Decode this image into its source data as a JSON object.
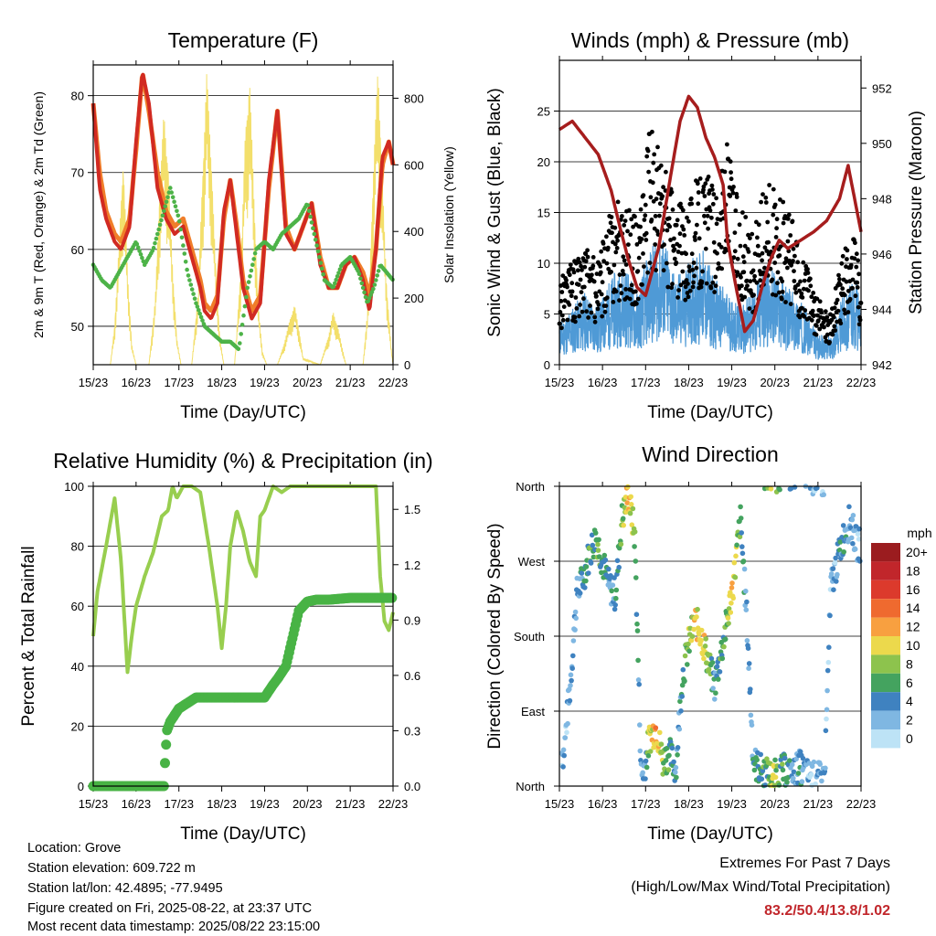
{
  "colors": {
    "temp_9m": "#d12a22",
    "temp_2m": "#f07e2a",
    "dewpoint": "#4db348",
    "solar": "#f3df6b",
    "wind": "#4f9ad6",
    "gust": "#000000",
    "pressure": "#a61d1d",
    "rh": "#98ce4f",
    "precip": "#48b345",
    "extremes_value": "#c1262b"
  },
  "time_ticks": [
    "15/23",
    "16/23",
    "17/23",
    "18/23",
    "19/23",
    "20/23",
    "21/23",
    "22/23"
  ],
  "xlabel": "Time (Day/UTC)",
  "wind_speed_colorbar": {
    "unit": "mph",
    "labels": [
      "20+",
      "18",
      "16",
      "14",
      "12",
      "10",
      "8",
      "6",
      "4",
      "2",
      "0"
    ],
    "colors": [
      "#9b1c1f",
      "#c1262b",
      "#dc3a2c",
      "#ef6a2f",
      "#f8a040",
      "#ecd94c",
      "#8dc34d",
      "#44a35f",
      "#3f82c0",
      "#7fb7e2",
      "#bde3f6"
    ]
  },
  "chart_data": [
    {
      "id": "temperature",
      "type": "line",
      "title": "Temperature (F)",
      "xlabel": "Time (Day/UTC)",
      "ylabel": "2m & 9m T (Red, Orange) & 2m Td (Green)",
      "ylabel_right": "Solar Insolation (Yellow)",
      "x_domain": [
        0,
        7
      ],
      "ylim": [
        45,
        84
      ],
      "yticks": [
        50,
        60,
        70,
        80
      ],
      "ylim_right": [
        0,
        900
      ],
      "yticks_right": [
        0,
        200,
        400,
        600,
        800
      ],
      "grid": true,
      "series": [
        {
          "key": "t2m",
          "x": [
            0,
            0.15,
            0.3,
            0.5,
            0.65,
            0.85,
            1.0,
            1.15,
            1.3,
            1.5,
            1.7,
            1.9,
            2.1,
            2.3,
            2.5,
            2.6,
            2.75,
            2.9,
            3.05,
            3.2,
            3.35,
            3.5,
            3.7,
            3.9,
            4.1,
            4.3,
            4.5,
            4.7,
            4.9,
            5.1,
            5.3,
            5.5,
            5.7,
            5.9,
            6.1,
            6.3,
            6.45,
            6.6,
            6.75,
            6.9,
            7.0
          ],
          "values": [
            79,
            70,
            65,
            62,
            61,
            64,
            73,
            83,
            78,
            70,
            65,
            63,
            64,
            60,
            56,
            53,
            52,
            54,
            64,
            69,
            63,
            56,
            52,
            54,
            68,
            78,
            63,
            60,
            63,
            66,
            59,
            55,
            55,
            58,
            59,
            57,
            54,
            60,
            71,
            74,
            71
          ]
        },
        {
          "key": "t9m",
          "x": [
            0,
            0.15,
            0.3,
            0.5,
            0.65,
            0.85,
            1.0,
            1.15,
            1.3,
            1.5,
            1.7,
            1.9,
            2.1,
            2.3,
            2.5,
            2.6,
            2.75,
            2.9,
            3.05,
            3.2,
            3.35,
            3.5,
            3.7,
            3.9,
            4.1,
            4.3,
            4.5,
            4.7,
            4.9,
            5.1,
            5.3,
            5.5,
            5.7,
            5.9,
            6.1,
            6.3,
            6.45,
            6.6,
            6.75,
            6.9,
            7.0
          ],
          "values": [
            79,
            68,
            64,
            61,
            60,
            63,
            74,
            83,
            79,
            68,
            64,
            62,
            63,
            59,
            55,
            52,
            51,
            53,
            65,
            69,
            62,
            55,
            51,
            53,
            69,
            78,
            62,
            60,
            63,
            66,
            58,
            55,
            55,
            58,
            59,
            56,
            52,
            60,
            72,
            74,
            71
          ]
        },
        {
          "key": "td2m",
          "x": [
            0,
            0.2,
            0.4,
            0.6,
            0.8,
            1.0,
            1.2,
            1.4,
            1.6,
            1.8,
            2.0,
            2.2,
            2.4,
            2.6,
            2.8,
            3.0,
            3.2,
            3.4,
            3.6,
            3.8,
            4.0,
            4.2,
            4.4,
            4.6,
            4.8,
            5.0,
            5.2,
            5.4,
            5.6,
            5.8,
            6.0,
            6.2,
            6.4,
            6.55,
            6.7,
            6.85,
            7.0
          ],
          "values": [
            58,
            56,
            55,
            57,
            59,
            61,
            58,
            60,
            64,
            68,
            64,
            57,
            53,
            50,
            49,
            48,
            48,
            47,
            55,
            60,
            61,
            60,
            62,
            63,
            64,
            66,
            61,
            56,
            55,
            58,
            59,
            57,
            53,
            55,
            58,
            57,
            56
          ]
        },
        {
          "key": "solar",
          "axis": "right",
          "x": [
            0,
            0.4,
            0.5,
            0.6,
            0.7,
            0.8,
            0.9,
            1.0,
            1.3,
            1.45,
            1.55,
            1.65,
            1.75,
            1.85,
            1.95,
            2.05,
            2.3,
            2.45,
            2.55,
            2.65,
            2.75,
            2.85,
            2.95,
            3.05,
            3.3,
            3.45,
            3.55,
            3.65,
            3.75,
            3.85,
            3.95,
            4.05,
            4.3,
            4.45,
            4.6,
            4.7,
            4.8,
            4.9,
            5.3,
            5.5,
            5.6,
            5.7,
            5.8,
            5.9,
            6.3,
            6.45,
            6.55,
            6.65,
            6.75,
            6.85,
            6.95,
            7.0
          ],
          "values": [
            0,
            0,
            120,
            360,
            620,
            280,
            60,
            0,
            0,
            200,
            520,
            760,
            600,
            300,
            80,
            0,
            0,
            220,
            560,
            880,
            640,
            320,
            90,
            0,
            0,
            300,
            700,
            860,
            520,
            180,
            40,
            0,
            0,
            60,
            140,
            180,
            110,
            20,
            0,
            90,
            160,
            120,
            60,
            0,
            0,
            240,
            620,
            900,
            560,
            240,
            60,
            0
          ]
        }
      ]
    },
    {
      "id": "winds_pressure",
      "type": "scatter",
      "title": "Winds (mph) & Pressure (mb)",
      "xlabel": "Time (Day/UTC)",
      "ylabel": "Sonic Wind & Gust (Blue, Black)",
      "ylabel_right": "Station Pressure (Maroon)",
      "x_domain": [
        0,
        7
      ],
      "ylim": [
        0,
        30
      ],
      "yticks": [
        0,
        5,
        10,
        15,
        20,
        25
      ],
      "ylim_right": [
        942,
        953
      ],
      "yticks_right": [
        942,
        944,
        946,
        948,
        950,
        952
      ],
      "grid": true,
      "series": [
        {
          "key": "wind",
          "x": [
            0,
            0.3,
            0.6,
            0.9,
            1.2,
            1.5,
            1.8,
            2.1,
            2.4,
            2.7,
            3.0,
            3.3,
            3.6,
            3.9,
            4.2,
            4.5,
            4.8,
            5.1,
            5.4,
            5.7,
            6.0,
            6.3,
            6.6,
            6.9,
            7.0
          ],
          "values": [
            3,
            4,
            5,
            4,
            6,
            7,
            5,
            8,
            9,
            6,
            7,
            8,
            6,
            5,
            4,
            5,
            7,
            6,
            5,
            4,
            2,
            2,
            5,
            6,
            3
          ]
        },
        {
          "key": "gust",
          "x": [
            0,
            0.3,
            0.6,
            0.9,
            1.2,
            1.5,
            1.8,
            2.1,
            2.4,
            2.7,
            3.0,
            3.3,
            3.6,
            3.9,
            4.2,
            4.5,
            4.8,
            5.1,
            5.4,
            5.7,
            6.0,
            6.3,
            6.6,
            6.9,
            7.0
          ],
          "values": [
            7,
            8,
            9,
            8,
            12,
            13,
            11,
            18,
            16,
            12,
            13,
            15,
            14,
            17,
            12,
            10,
            14,
            13,
            11,
            8,
            5,
            4,
            9,
            10,
            5
          ]
        },
        {
          "key": "pressure",
          "axis": "right",
          "x": [
            0,
            0.3,
            0.6,
            0.9,
            1.2,
            1.4,
            1.6,
            1.8,
            2.0,
            2.3,
            2.6,
            2.8,
            3.0,
            3.2,
            3.4,
            3.6,
            3.8,
            3.9,
            4.1,
            4.3,
            4.5,
            4.7,
            4.9,
            5.1,
            5.3,
            5.6,
            5.9,
            6.2,
            6.5,
            6.7,
            6.85,
            7.0
          ],
          "values": [
            950.5,
            950.8,
            950.2,
            949.6,
            948.3,
            947.0,
            945.8,
            944.8,
            944.5,
            946.2,
            949.0,
            950.8,
            951.7,
            951.3,
            950.2,
            949.5,
            948.5,
            946.5,
            944.8,
            943.2,
            943.6,
            944.8,
            945.8,
            946.5,
            946.2,
            946.5,
            946.8,
            947.2,
            948.0,
            949.2,
            948.0,
            946.8
          ]
        }
      ]
    },
    {
      "id": "rh_precip",
      "type": "line",
      "title": "Relative Humidity (%) & Precipitation (in)",
      "xlabel": "Time (Day/UTC)",
      "ylabel": "Percent & Total Rainfall",
      "x_domain": [
        0,
        7
      ],
      "ylim": [
        0,
        100
      ],
      "yticks": [
        0,
        20,
        40,
        60,
        80,
        100
      ],
      "ylim_right": [
        0,
        1.625
      ],
      "yticks_right": [
        "0.0",
        "0.3",
        "0.6",
        "0.9",
        "1.2",
        "1.5"
      ],
      "grid": true,
      "series": [
        {
          "key": "rh",
          "x": [
            0,
            0.1,
            0.3,
            0.5,
            0.65,
            0.8,
            0.9,
            1.0,
            1.2,
            1.4,
            1.6,
            1.75,
            1.85,
            1.95,
            2.1,
            2.3,
            2.5,
            2.7,
            2.9,
            3.0,
            3.1,
            3.2,
            3.35,
            3.5,
            3.65,
            3.8,
            3.9,
            4.0,
            4.2,
            4.4,
            4.6,
            4.8,
            5.0,
            5.3,
            5.6,
            5.9,
            6.2,
            6.5,
            6.6,
            6.7,
            6.8,
            6.9,
            7.0
          ],
          "values": [
            50,
            65,
            80,
            96,
            75,
            38,
            50,
            60,
            70,
            78,
            90,
            92,
            100,
            96,
            100,
            100,
            98,
            80,
            60,
            46,
            60,
            80,
            92,
            85,
            75,
            70,
            90,
            92,
            100,
            98,
            100,
            100,
            100,
            100,
            100,
            100,
            100,
            100,
            100,
            70,
            55,
            52,
            58
          ]
        },
        {
          "key": "precip",
          "axis": "right",
          "x": [
            0,
            0.5,
            1.0,
            1.5,
            1.65,
            1.68,
            1.72,
            1.8,
            2.0,
            2.2,
            2.4,
            2.6,
            3.0,
            3.5,
            4.0,
            4.2,
            4.3,
            4.5,
            4.6,
            4.7,
            4.8,
            5.0,
            5.2,
            5.5,
            6.0,
            6.5,
            7.0
          ],
          "values": [
            0,
            0,
            0,
            0,
            0,
            0.15,
            0.3,
            0.35,
            0.42,
            0.45,
            0.48,
            0.48,
            0.48,
            0.48,
            0.48,
            0.55,
            0.58,
            0.65,
            0.75,
            0.85,
            0.95,
            1.0,
            1.01,
            1.01,
            1.02,
            1.02,
            1.02
          ]
        }
      ]
    },
    {
      "id": "wind_direction",
      "type": "scatter",
      "title": "Wind Direction",
      "xlabel": "Time (Day/UTC)",
      "ylabel": "Direction (Colored By Speed)",
      "x_domain": [
        0,
        7
      ],
      "ylim": [
        0,
        360
      ],
      "yticks": [
        "North",
        "East",
        "South",
        "West",
        "North"
      ],
      "grid": true,
      "series": [
        {
          "key": "direction",
          "x": [
            0.1,
            0.25,
            0.4,
            0.55,
            0.7,
            0.85,
            1.0,
            1.15,
            1.3,
            1.45,
            1.6,
            1.75,
            1.9,
            2.0,
            2.1,
            2.25,
            2.4,
            2.55,
            2.7,
            2.85,
            3.0,
            3.15,
            3.3,
            3.45,
            3.6,
            3.75,
            3.9,
            4.05,
            4.2,
            4.35,
            4.5,
            4.65,
            4.8,
            4.95,
            5.1,
            5.25,
            5.4,
            5.55,
            5.7,
            5.85,
            6.0,
            6.15,
            6.3,
            6.45,
            6.6,
            6.75,
            6.9
          ],
          "values": [
            40,
            120,
            230,
            250,
            280,
            300,
            270,
            240,
            230,
            320,
            350,
            300,
            10,
            30,
            60,
            70,
            30,
            40,
            20,
            130,
            170,
            200,
            180,
            150,
            120,
            160,
            200,
            250,
            320,
            200,
            30,
            20,
            15,
            10,
            15,
            20,
            10,
            25,
            15,
            10,
            10,
            5,
            240,
            270,
            300,
            320,
            290
          ],
          "speeds": [
            2,
            3,
            3,
            4,
            6,
            7,
            5,
            3,
            4,
            8,
            11,
            7,
            2,
            5,
            9,
            12,
            8,
            6,
            3,
            5,
            8,
            10,
            11,
            7,
            4,
            6,
            8,
            10,
            6,
            3,
            4,
            5,
            6,
            9,
            6,
            5,
            3,
            4,
            3,
            2,
            2,
            3,
            2,
            3,
            4,
            3,
            2
          ]
        }
      ]
    }
  ],
  "footer": {
    "location": "Location: Grove",
    "elevation": "Station elevation: 609.722 m",
    "latlon": "Station lat/lon: 42.4895; -77.9495",
    "created": "Figure created on Fri, 2025-08-22, at 23:37 UTC",
    "recent": "Most recent data timestamp: 2025/08/22 23:15:00"
  },
  "extremes": {
    "title": "Extremes For Past 7 Days",
    "subtitle": "(High/Low/Max Wind/Total Precipitation)",
    "values": "83.2/50.4/13.8/1.02"
  }
}
